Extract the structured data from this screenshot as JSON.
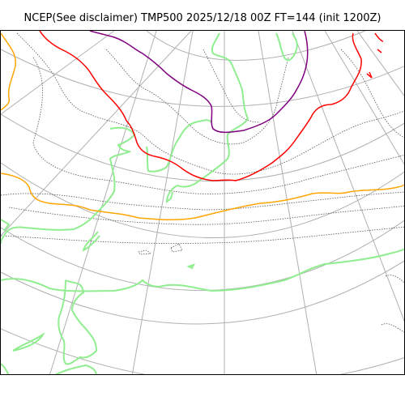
{
  "title": "NCEP(See disclaimer) TMP500 2025/12/18 00Z FT=144 (init 1200Z)",
  "colors": {
    "grid": "#b0b0b0",
    "coast": "#555555",
    "land_outline": "#90ee90",
    "isotherm_orange": "#ffa500",
    "isotherm_red": "#ff0000",
    "isotherm_purple": "#800080",
    "frame": "#000000"
  }
}
